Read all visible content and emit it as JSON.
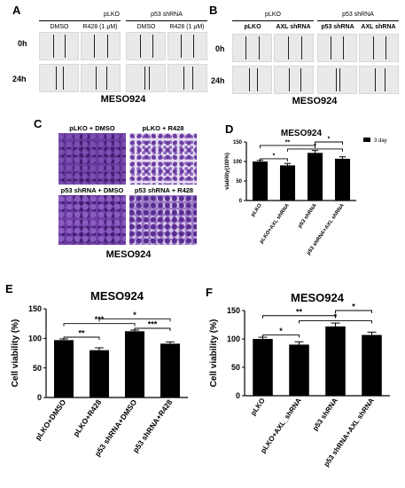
{
  "panel_a": {
    "letter": "A",
    "group_labels": [
      "pLKO",
      "p53 shRNA"
    ],
    "column_labels": [
      "DMSO",
      "R428 (1 μM)",
      "DMSO",
      "R428 (1 μM)"
    ],
    "row_labels": [
      "0h",
      "24h"
    ],
    "title": "MESO924"
  },
  "panel_b": {
    "letter": "B",
    "group_labels": [
      "pLKO",
      "p53 shRNA"
    ],
    "column_labels": [
      "pLKO",
      "AXL shRNA",
      "p53 shRNA",
      "AXL shRNA"
    ],
    "row_labels": [
      "0h",
      "24h"
    ],
    "title": "MESO924"
  },
  "panel_c": {
    "letter": "C",
    "image_labels": [
      "pLKO + DMSO",
      "pLKO + R428",
      "p53 shRNA + DMSO",
      "p53 shRNA + R428"
    ],
    "title": "MESO924"
  },
  "chart_data": [
    {
      "panel": "D",
      "type": "bar",
      "title": "MESO924",
      "ylabel": "viability(100%)",
      "categories": [
        "pLKO",
        "pLKO+AXL shRNA",
        "p53 shRNA",
        "p53 shRNA+AXL shRNA"
      ],
      "values": [
        100,
        90,
        122,
        107
      ],
      "errors": [
        3,
        5,
        6,
        5
      ],
      "ylim": [
        0,
        150
      ],
      "yticks": [
        0,
        50,
        100,
        150
      ],
      "legend": [
        "3 day"
      ],
      "legend_position": "top-right",
      "significance": [
        {
          "from": 0,
          "to": 1,
          "label": "*"
        },
        {
          "from": 0,
          "to": 2,
          "label": "**"
        },
        {
          "from": 1,
          "to": 3,
          "label": "*"
        },
        {
          "from": 2,
          "to": 3,
          "label": "*"
        }
      ]
    },
    {
      "panel": "E",
      "type": "bar",
      "title": "MESO924",
      "ylabel": "Cell viability (%)",
      "categories": [
        "pLKO+DMSO",
        "pLKO+R428",
        "p53 shRNA+DMSO",
        "p53 shRNA+R428"
      ],
      "values": [
        97,
        80,
        112,
        91
      ],
      "errors": [
        2,
        4,
        2,
        3
      ],
      "ylim": [
        0,
        150
      ],
      "yticks": [
        0,
        50,
        100,
        150
      ],
      "significance": [
        {
          "from": 0,
          "to": 1,
          "label": "**"
        },
        {
          "from": 0,
          "to": 2,
          "label": "***"
        },
        {
          "from": 1,
          "to": 3,
          "label": "*"
        },
        {
          "from": 2,
          "to": 3,
          "label": "***"
        }
      ]
    },
    {
      "panel": "F",
      "type": "bar",
      "title": "MESO924",
      "ylabel": "Cell viability (%)",
      "categories": [
        "pLKO",
        "pLKO+AXL_shRNA",
        "p53 shRNA",
        "p53 shRNA+AXL shRNA"
      ],
      "values": [
        100,
        90,
        122,
        107
      ],
      "errors": [
        3,
        5,
        6,
        5
      ],
      "ylim": [
        0,
        150
      ],
      "yticks": [
        0,
        50,
        100,
        150
      ],
      "significance": [
        {
          "from": 0,
          "to": 1,
          "label": "*"
        },
        {
          "from": 0,
          "to": 2,
          "label": "**"
        },
        {
          "from": 1,
          "to": 3,
          "label": "*"
        },
        {
          "from": 2,
          "to": 3,
          "label": "*"
        }
      ]
    }
  ],
  "colors": {
    "bar": "#000000",
    "cell_background": "#e9e9e9",
    "stain_dense": "#5a2a8c",
    "stain_light": "#d8c8e8"
  }
}
